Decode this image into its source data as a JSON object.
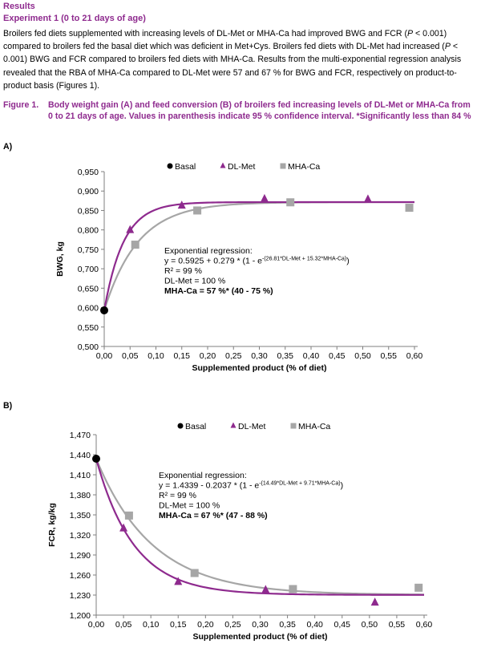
{
  "section_title": "Results",
  "subsection_title": "Experiment 1 (0 to 21 days of age)",
  "paragraph": {
    "part1": "Broilers fed diets supplemented with increasing levels of DL-Met or MHA-Ca had improved BWG and FCR (",
    "p1": "P",
    "part2": " < 0.001) compared to broilers fed the basal diet which was deficient in Met+Cys. Broilers fed diets with DL-Met had increased (",
    "p2": "P",
    "part3": " < 0.001) BWG and FCR compared to broilers fed diets with MHA-Ca. Results from the multi-exponential regression analysis revealed that the RBA of MHA-Ca compared to DL-Met were 57 and 67 % for BWG and FCR, respectively on product-to-product basis (Figures 1)."
  },
  "figure_caption": {
    "number": "Figure 1.",
    "text": "Body weight gain (A) and feed conversion (B) of broilers fed increasing levels of DL-Met or MHA-Ca from 0 to 21 days of age. Values in parenthesis indicate 95 % confidence interval. *Significantly less than 84 %"
  },
  "colors": {
    "heading": "#8e2a8e",
    "dlmet": "#8e2a8e",
    "mhaca": "#a6a6a6",
    "basal": "#000000"
  },
  "chart_data": [
    {
      "panel_label": "A)",
      "type": "scatter",
      "xlabel": "Supplemented product (% of diet)",
      "ylabel": "BWG, kg",
      "xlim": [
        0,
        0.6
      ],
      "ylim": [
        0.5,
        0.95
      ],
      "x_ticks": [
        "0,00",
        "0,05",
        "0,10",
        "0,15",
        "0,20",
        "0,25",
        "0,30",
        "0,35",
        "0,40",
        "0,45",
        "0,50",
        "0,55",
        "0,60"
      ],
      "y_ticks": [
        "0,500",
        "0,550",
        "0,600",
        "0,650",
        "0,700",
        "0,750",
        "0,800",
        "0,850",
        "0,900",
        "0,950"
      ],
      "legend": [
        "Basal",
        "DL-Met",
        "MHA-Ca"
      ],
      "legend_position": "top-center",
      "series": [
        {
          "name": "Basal",
          "marker": "circle",
          "color": "#000000",
          "points": [
            [
              0.0,
              0.593
            ]
          ]
        },
        {
          "name": "DL-Met",
          "marker": "triangle",
          "color": "#8e2a8e",
          "points": [
            [
              0.05,
              0.8
            ],
            [
              0.15,
              0.863
            ],
            [
              0.31,
              0.88
            ],
            [
              0.51,
              0.879
            ]
          ]
        },
        {
          "name": "MHA-Ca",
          "marker": "square",
          "color": "#a6a6a6",
          "points": [
            [
              0.06,
              0.762
            ],
            [
              0.18,
              0.85
            ],
            [
              0.36,
              0.871
            ],
            [
              0.59,
              0.857
            ]
          ]
        }
      ],
      "regression": {
        "a": 0.5925,
        "b": 0.279,
        "c_dlmet": 26.81,
        "c_mhaca": 15.32,
        "sign": 1
      },
      "annotation": {
        "title": "Exponential regression:",
        "eq_main": "y = 0.5925 + 0.279 * (1 - e",
        "eq_sup": "-(26.81*DL-Met + 15.32*MHA-Ca)",
        "eq_end": ")",
        "r2": "R² = 99 %",
        "dlmet": "DL-Met = 100 %",
        "mhaca": "MHA-Ca = 57 %* (40 - 75 %)"
      }
    },
    {
      "panel_label": "B)",
      "type": "scatter",
      "xlabel": "Supplemented product (% of diet)",
      "ylabel": "FCR, kg/kg",
      "xlim": [
        0,
        0.6
      ],
      "ylim": [
        1.2,
        1.47
      ],
      "x_ticks": [
        "0,00",
        "0,05",
        "0,10",
        "0,15",
        "0,20",
        "0,25",
        "0,30",
        "0,35",
        "0,40",
        "0,45",
        "0,50",
        "0,55",
        "0,60"
      ],
      "y_ticks": [
        "1,200",
        "1,230",
        "1,260",
        "1,290",
        "1,320",
        "1,350",
        "1,380",
        "1,410",
        "1,440",
        "1,470"
      ],
      "legend": [
        "Basal",
        "DL-Met",
        "MHA-Ca"
      ],
      "legend_position": "top-center",
      "series": [
        {
          "name": "Basal",
          "marker": "circle",
          "color": "#000000",
          "points": [
            [
              0.0,
              1.434
            ]
          ]
        },
        {
          "name": "DL-Met",
          "marker": "triangle",
          "color": "#8e2a8e",
          "points": [
            [
              0.05,
              1.33
            ],
            [
              0.15,
              1.25
            ],
            [
              0.31,
              1.238
            ],
            [
              0.51,
              1.219
            ]
          ]
        },
        {
          "name": "MHA-Ca",
          "marker": "square",
          "color": "#a6a6a6",
          "points": [
            [
              0.06,
              1.349
            ],
            [
              0.18,
              1.263
            ],
            [
              0.36,
              1.239
            ],
            [
              0.59,
              1.241
            ]
          ]
        }
      ],
      "regression": {
        "a": 1.4339,
        "b": 0.2037,
        "c_dlmet": 14.49,
        "c_mhaca": 9.71,
        "sign": -1
      },
      "annotation": {
        "title": "Exponential regression:",
        "eq_main": "y = 1.4339 - 0.2037 * (1 - e",
        "eq_sup": "-(14.49*DL-Met + 9.71*MHA-Ca)",
        "eq_end": ")",
        "r2": "R² = 99 %",
        "dlmet": "DL-Met = 100 %",
        "mhaca": "MHA-Ca = 67 %* (47 - 88 %)"
      }
    }
  ]
}
